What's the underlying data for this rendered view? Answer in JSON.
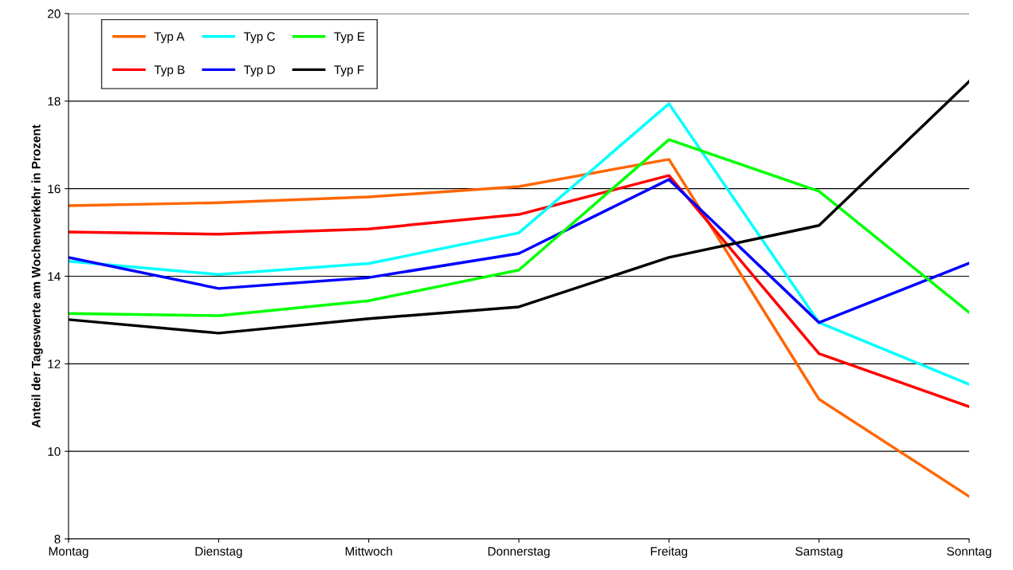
{
  "chart_data": {
    "type": "line",
    "ylabel": "Anteil der Tageswerte am Wochenverkehr in Prozent",
    "categories": [
      "Montag",
      "Dienstag",
      "Mittwoch",
      "Donnerstag",
      "Freitag",
      "Samstag",
      "Sonntag"
    ],
    "series": [
      {
        "name": "Typ A",
        "color": "#ff6600",
        "values": [
          15.61,
          15.68,
          15.81,
          16.05,
          16.67,
          11.19,
          8.97
        ]
      },
      {
        "name": "Typ B",
        "color": "#ff0000",
        "values": [
          15.01,
          14.96,
          15.08,
          15.41,
          16.3,
          12.23,
          11.02
        ]
      },
      {
        "name": "Typ C",
        "color": "#00ffff",
        "values": [
          14.34,
          14.04,
          14.29,
          14.99,
          17.94,
          12.94,
          11.53
        ]
      },
      {
        "name": "Typ D",
        "color": "#0000ff",
        "values": [
          14.43,
          13.72,
          13.97,
          14.52,
          16.21,
          12.94,
          14.3
        ]
      },
      {
        "name": "Typ E",
        "color": "#00ff00",
        "values": [
          13.15,
          13.1,
          13.44,
          14.14,
          17.12,
          15.94,
          13.17
        ]
      },
      {
        "name": "Typ F",
        "color": "#000000",
        "values": [
          13.01,
          12.7,
          13.03,
          13.3,
          14.43,
          15.16,
          18.45
        ]
      }
    ],
    "ylim": [
      8,
      20
    ],
    "yticks": [
      8,
      10,
      12,
      14,
      16,
      18,
      20
    ],
    "grid": "y",
    "legend": "top left",
    "marker": "none",
    "line_style": "solid"
  }
}
